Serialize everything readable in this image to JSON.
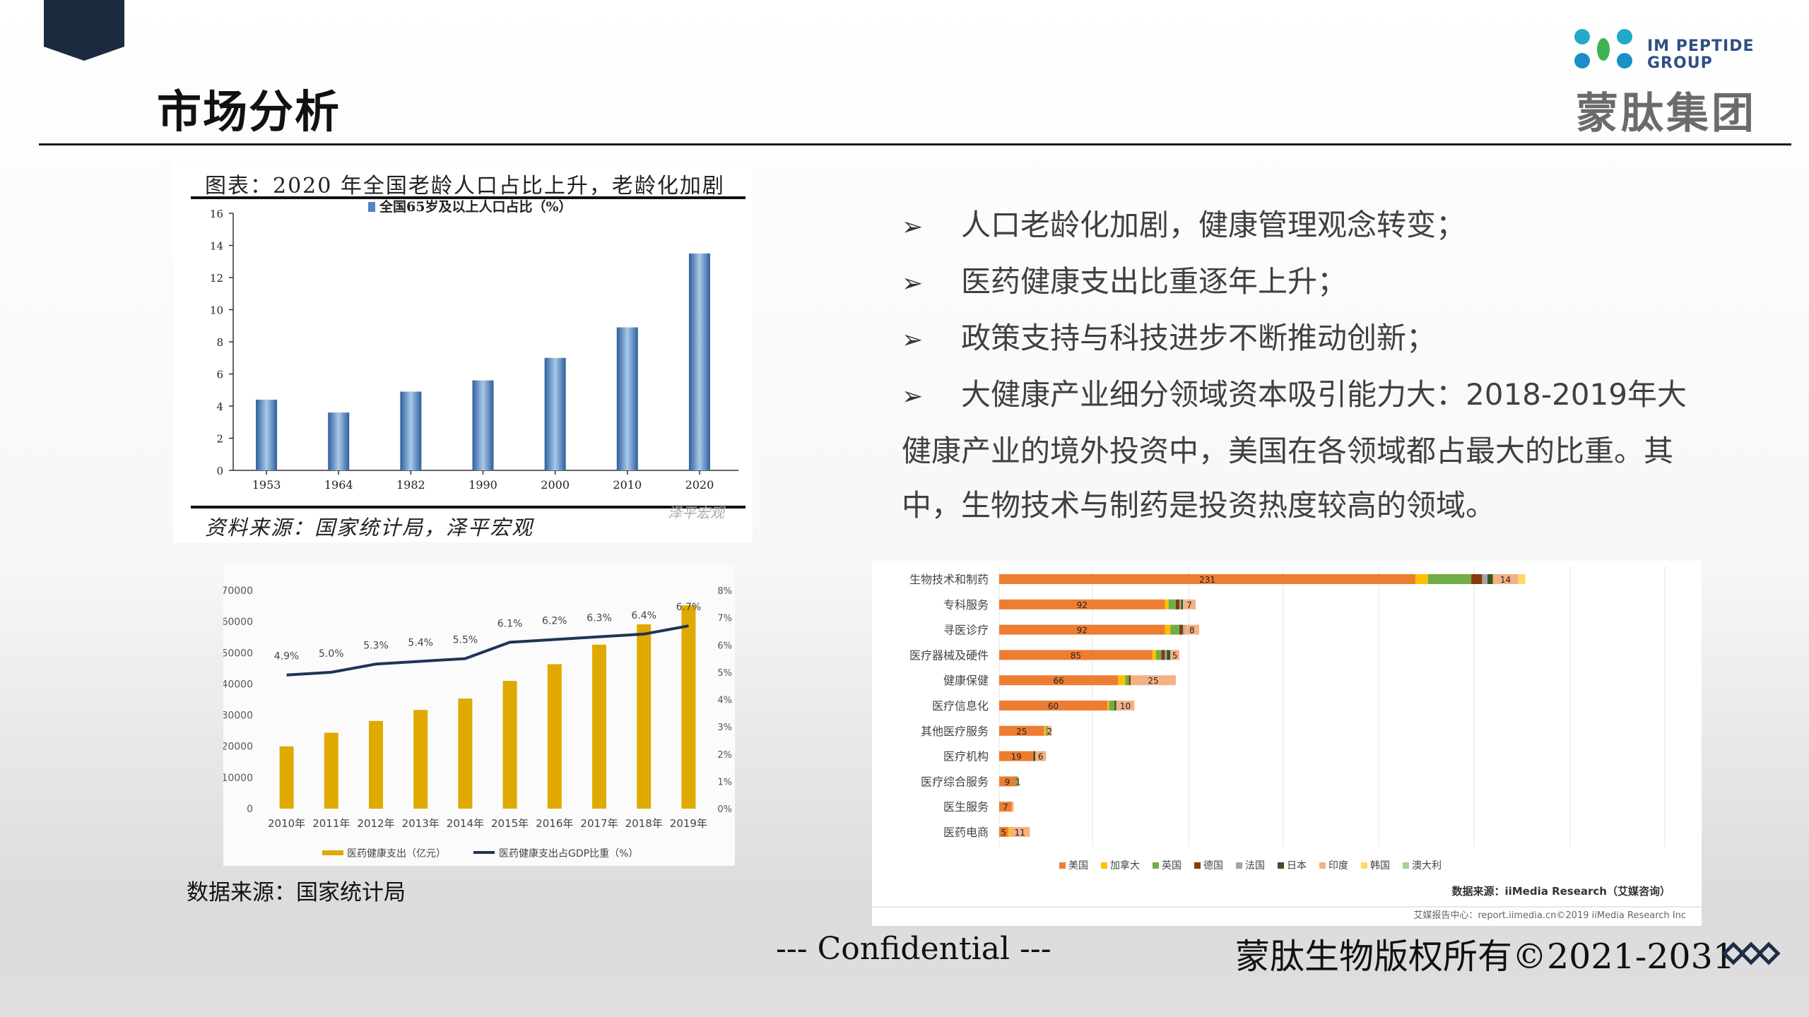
{
  "title": "市场分析",
  "logo": {
    "en_line1": "IM PEPTIDE",
    "en_line2": "GROUP",
    "cn": "蒙肽集团"
  },
  "bullets": [
    "人口老龄化加剧，健康管理观念转变；",
    "医药健康支出比重逐年上升；",
    "政策支持与科技进步不断推动创新；",
    "大健康产业细分领域资本吸引能力大：2018-2019年大健康产业的境外投资中，美国在各领域都占最大的比重。其中，生物技术与制药是投资热度较高的领域。"
  ],
  "left_caption": "数据来源：国家统计局",
  "footer": {
    "confidential": "--- Confidential ---",
    "copyright": "蒙肽生物版权所有©2021-2031"
  },
  "chart_data": [
    {
      "type": "bar",
      "title": "图表：2020 年全国老龄人口占比上升，老龄化加剧",
      "legend": "全国65岁及以上人口占比（%）",
      "source": "资料来源：国家统计局，泽平宏观",
      "watermark": "泽平宏观",
      "categories": [
        "1953",
        "1964",
        "1982",
        "1990",
        "2000",
        "2010",
        "2020"
      ],
      "values": [
        4.4,
        3.6,
        4.9,
        5.6,
        7.0,
        8.9,
        13.5
      ],
      "ylim": [
        0,
        16
      ],
      "yticks": [
        0,
        2,
        4,
        6,
        8,
        10,
        12,
        14,
        16
      ],
      "color": "#4f85c4"
    },
    {
      "type": "bar+line",
      "categories": [
        "2010年",
        "2011年",
        "2012年",
        "2013年",
        "2014年",
        "2015年",
        "2016年",
        "2017年",
        "2018年",
        "2019年"
      ],
      "series": [
        {
          "name": "医药健康支出（亿元）",
          "type": "bar",
          "axis": "left",
          "values": [
            19980,
            24346,
            28119,
            31669,
            35312,
            40975,
            46345,
            52598,
            59122,
            65196
          ],
          "color": "#e0a900"
        },
        {
          "name": "医药健康支出占GDP比重（%）",
          "type": "line",
          "axis": "right",
          "values": [
            4.9,
            5.0,
            5.3,
            5.4,
            5.5,
            6.1,
            6.2,
            6.3,
            6.4,
            6.7
          ],
          "labels": [
            "4.9%",
            "5.0%",
            "5.3%",
            "5.4%",
            "5.5%",
            "6.1%",
            "6.2%",
            "6.3%",
            "6.4%",
            "6.7%"
          ],
          "color": "#1f3455"
        }
      ],
      "ylim_left": [
        0,
        70000
      ],
      "yticks_left": [
        "0",
        "10000",
        "20000",
        "30000",
        "40000",
        "50000",
        "60000",
        "70000"
      ],
      "ylim_right": [
        0,
        8
      ],
      "yticks_right": [
        "0%",
        "1%",
        "2%",
        "3%",
        "4%",
        "5%",
        "6%",
        "7%",
        "8%"
      ]
    },
    {
      "type": "stacked-bar-horizontal",
      "categories": [
        "生物技术和制药",
        "专科服务",
        "寻医诊疗",
        "医疗器械及硬件",
        "健康保健",
        "医疗信息化",
        "其他医疗服务",
        "医疗机构",
        "医疗综合服务",
        "医生服务",
        "医药电商"
      ],
      "series": [
        {
          "name": "美国",
          "color": "#ed7d31",
          "values": [
            231,
            92,
            92,
            85,
            66,
            60,
            25,
            19,
            9,
            7,
            5
          ],
          "labels": [
            "231",
            "92",
            "92",
            "85",
            "66",
            "60",
            "25",
            "19",
            "9",
            "7",
            "5"
          ]
        },
        {
          "name": "加拿大",
          "color": "#ffc000",
          "values": [
            7,
            2,
            3,
            2,
            4,
            1,
            1,
            0,
            0,
            0,
            1
          ]
        },
        {
          "name": "英国",
          "color": "#70ad47",
          "values": [
            24,
            4,
            5,
            3,
            2,
            3,
            1,
            0,
            1,
            0,
            0
          ]
        },
        {
          "name": "德国",
          "color": "#843c0c",
          "values": [
            6,
            2,
            2,
            2,
            1,
            0,
            0,
            0,
            0,
            0,
            0
          ]
        },
        {
          "name": "法国",
          "color": "#a5a5a5",
          "values": [
            3,
            1,
            1,
            1,
            0,
            0,
            0,
            0,
            0,
            0,
            0
          ]
        },
        {
          "name": "日本",
          "color": "#375623",
          "values": [
            3,
            1,
            0,
            2,
            0,
            1,
            0,
            1,
            0,
            0,
            0
          ]
        },
        {
          "name": "印度",
          "color": "#f4b183",
          "values": [
            14,
            7,
            8,
            5,
            25,
            10,
            2,
            6,
            1,
            1,
            11
          ],
          "labels": [
            "14",
            "7",
            "8",
            "5",
            "25",
            "10",
            "2",
            "6",
            "1",
            "",
            "11"
          ]
        },
        {
          "name": "韩国",
          "color": "#ffd966",
          "values": [
            4,
            0,
            0,
            0,
            0,
            0,
            0,
            0,
            0,
            0,
            0
          ]
        },
        {
          "name": "澳大利",
          "color": "#a9d18e",
          "values": [
            0,
            0,
            0,
            0,
            0,
            0,
            0,
            0,
            0,
            0,
            0
          ]
        }
      ],
      "source": "数据来源：iiMedia Research（艾媒咨询）",
      "footer_note": "艾媒报告中心：report.iimedia.cn©2019 iiMedia Research Inc"
    }
  ]
}
